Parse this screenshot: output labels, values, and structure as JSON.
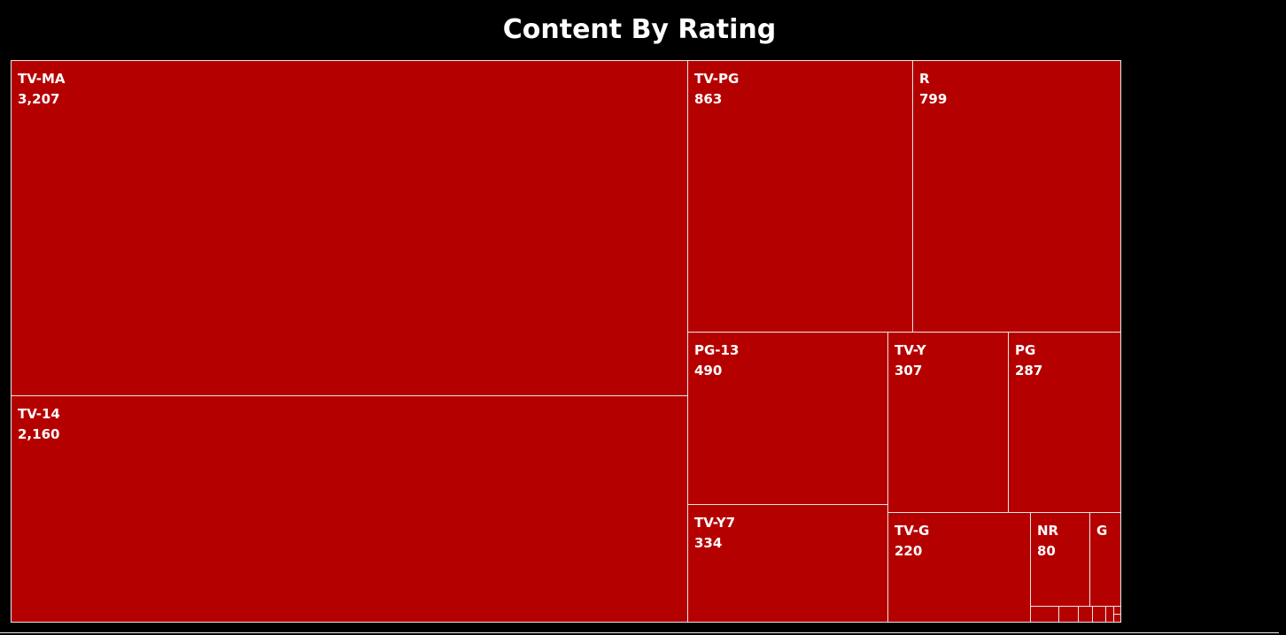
{
  "title": "Content By Rating",
  "colors": {
    "background": "#000000",
    "tile": "#b50000",
    "border": "#e8e8e8",
    "text": "#ffffff"
  },
  "chart_data": {
    "type": "treemap",
    "title": "Content By Rating",
    "items": [
      {
        "label": "TV-MA",
        "value": 3207,
        "value_label": "3,207"
      },
      {
        "label": "TV-14",
        "value": 2160,
        "value_label": "2,160"
      },
      {
        "label": "TV-PG",
        "value": 863,
        "value_label": "863"
      },
      {
        "label": "R",
        "value": 799,
        "value_label": "799"
      },
      {
        "label": "PG-13",
        "value": 490,
        "value_label": "490"
      },
      {
        "label": "TV-Y7",
        "value": 334,
        "value_label": "334"
      },
      {
        "label": "TV-Y",
        "value": 307,
        "value_label": "307"
      },
      {
        "label": "PG",
        "value": 287,
        "value_label": "287"
      },
      {
        "label": "TV-G",
        "value": 220,
        "value_label": "220"
      },
      {
        "label": "NR",
        "value": 80,
        "value_label": "80"
      },
      {
        "label": "G",
        "value": 41,
        "value_label": ""
      }
    ]
  }
}
